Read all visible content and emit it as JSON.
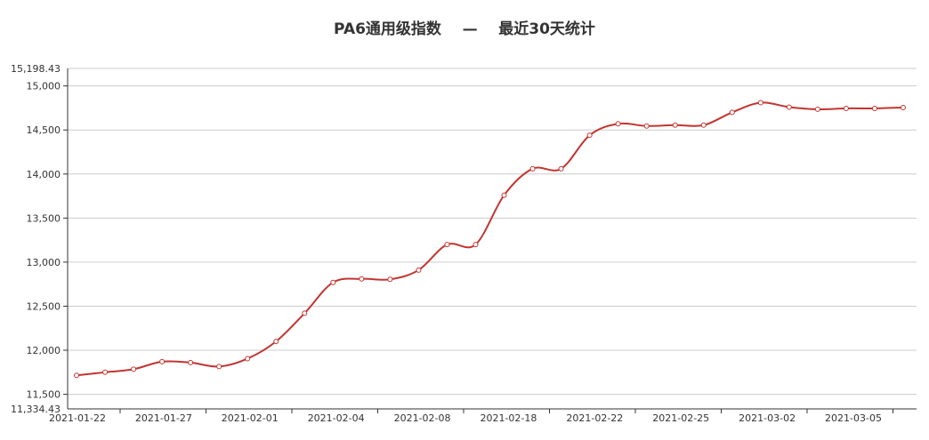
{
  "chart_data": {
    "type": "line",
    "title": "PA6通用级指数    —    最近30天统计",
    "xlabel": "",
    "ylabel": "",
    "ylim": [
      11334.43,
      15198.43
    ],
    "yticks": [
      11500,
      12000,
      12500,
      13000,
      13500,
      14000,
      14500,
      15000
    ],
    "ytick_labels": [
      "11,500",
      "12,000",
      "12,500",
      "13,000",
      "13,500",
      "14,000",
      "14,500",
      "15,000"
    ],
    "ymin_label": "11,334.43",
    "ymax_label": "15,198.43",
    "x_tick_labels": [
      "2021-01-22",
      "2021-01-27",
      "2021-02-01",
      "2021-02-04",
      "2021-02-08",
      "2021-02-18",
      "2021-02-22",
      "2021-02-25",
      "2021-03-02",
      "2021-03-05"
    ],
    "grid": true,
    "color": "#c23531",
    "series": [
      {
        "values": [
          11715,
          11750,
          11785,
          11870,
          11860,
          11815,
          11905,
          12100,
          12420,
          12770,
          12810,
          12805,
          12910,
          13200,
          13200,
          13760,
          14060,
          14060,
          14440,
          14570,
          14545,
          14555,
          14555,
          14700,
          14810,
          14760,
          14735,
          14745,
          14745,
          14755
        ]
      }
    ]
  }
}
